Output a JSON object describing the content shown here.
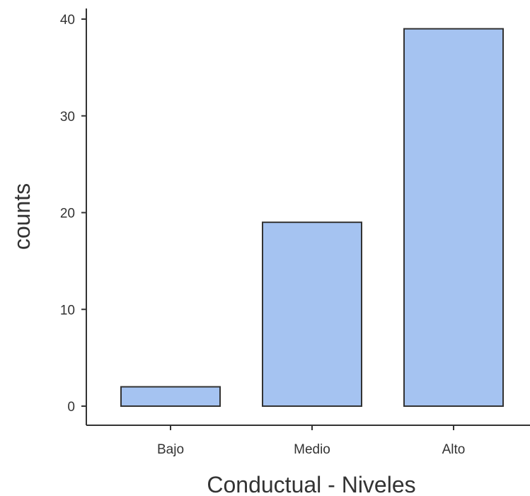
{
  "chart_data": {
    "type": "bar",
    "categories": [
      "Bajo",
      "Medio",
      "Alto"
    ],
    "values": [
      2,
      19,
      39
    ],
    "xlabel": "Conductual - Niveles",
    "ylabel": "counts",
    "ylim": [
      -2,
      41
    ],
    "yticks": [
      0,
      10,
      20,
      30,
      40
    ],
    "grid": false,
    "legend": "none",
    "colors": {
      "bar_fill": "#a5c3f1",
      "bar_stroke": "#333333",
      "axis": "#333333",
      "text": "#333333"
    }
  }
}
